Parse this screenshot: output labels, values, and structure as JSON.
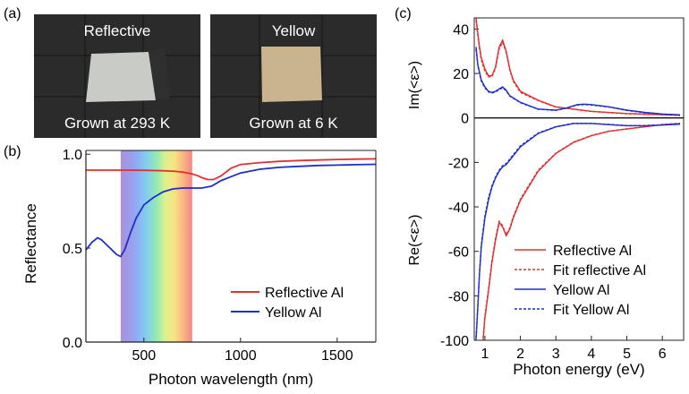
{
  "panels": {
    "a": {
      "label": "(a)",
      "photos": [
        {
          "top_text": "Reflective",
          "bottom_text": "Grown at 293 K",
          "sample_color": "#c9ccc6",
          "background": "#2b2b2b"
        },
        {
          "top_text": "Yellow",
          "bottom_text": "Grown at 6 K",
          "sample_color": "#c9b48f",
          "background": "#2b2b2b"
        }
      ]
    },
    "b": {
      "label": "(b)"
    },
    "c": {
      "label": "(c)"
    }
  },
  "colors": {
    "reflective": "#e03030",
    "yellow": "#1f2fc8",
    "fit_reflective": "#e03030",
    "fit_yellow": "#1f2fc8"
  },
  "chart_data": [
    {
      "id": "b",
      "type": "line",
      "title": "",
      "xlabel": "Photon wavelength (nm)",
      "ylabel": "Reflectance",
      "xlim": [
        200,
        1700
      ],
      "ylim": [
        0,
        1.02
      ],
      "xticks": [
        500,
        1000,
        1500
      ],
      "yticks": [
        0.0,
        0.5,
        1.0
      ],
      "ytick_labels": [
        "0.0",
        "0.5",
        "1.0"
      ],
      "visible_band_nm": [
        380,
        750
      ],
      "legend": "right",
      "series": [
        {
          "name": "Reflective Al",
          "color": "#e03030",
          "x": [
            200,
            300,
            400,
            500,
            600,
            650,
            700,
            750,
            780,
            800,
            830,
            860,
            900,
            950,
            1000,
            1100,
            1200,
            1300,
            1400,
            1500,
            1600,
            1700
          ],
          "y": [
            0.915,
            0.915,
            0.915,
            0.914,
            0.912,
            0.91,
            0.905,
            0.895,
            0.885,
            0.875,
            0.865,
            0.865,
            0.885,
            0.925,
            0.945,
            0.955,
            0.962,
            0.966,
            0.969,
            0.972,
            0.974,
            0.975
          ]
        },
        {
          "name": "Yellow Al",
          "color": "#1f2fc8",
          "x": [
            200,
            230,
            260,
            280,
            300,
            320,
            340,
            360,
            380,
            400,
            430,
            460,
            500,
            550,
            600,
            650,
            700,
            750,
            800,
            850,
            900,
            1000,
            1100,
            1200,
            1300,
            1400,
            1500,
            1600,
            1700
          ],
          "y": [
            0.49,
            0.53,
            0.555,
            0.545,
            0.525,
            0.505,
            0.485,
            0.465,
            0.455,
            0.49,
            0.58,
            0.66,
            0.73,
            0.77,
            0.8,
            0.815,
            0.82,
            0.82,
            0.82,
            0.83,
            0.86,
            0.9,
            0.92,
            0.93,
            0.935,
            0.94,
            0.942,
            0.944,
            0.946
          ]
        }
      ]
    },
    {
      "id": "c",
      "type": "line",
      "title": "",
      "xlabel": "Photon energy (eV)",
      "ylabel_top": "Im(<ε>)",
      "ylabel_bottom": "Re(<ε>)",
      "xlim": [
        0.7,
        6.6
      ],
      "ylim": [
        -100,
        45
      ],
      "xticks": [
        1,
        2,
        3,
        4,
        5,
        6
      ],
      "yticks": [
        -100,
        -80,
        -60,
        -40,
        -20,
        0,
        20,
        40
      ],
      "grid": false,
      "legend": "lower-right",
      "series": [
        {
          "name": "Reflective Al",
          "color": "#e03030",
          "style": "solid",
          "x": [
            0.75,
            0.8,
            0.85,
            0.9,
            1.0,
            1.1,
            1.2,
            1.3,
            1.4,
            1.5,
            1.6,
            1.7,
            1.8,
            2.0,
            2.5,
            3.0,
            3.5,
            4.0,
            5.0,
            6.0,
            6.5
          ],
          "y": [
            45,
            38,
            32,
            27,
            22,
            19,
            19,
            23,
            32,
            35,
            30,
            22,
            17,
            12,
            8,
            5,
            4,
            3,
            2,
            1.5,
            1.2
          ]
        },
        {
          "name": "Reflective Al",
          "color": "#e03030",
          "style": "solid",
          "x": [
            0.95,
            1.0,
            1.1,
            1.2,
            1.3,
            1.4,
            1.5,
            1.6,
            1.7,
            1.8,
            2.0,
            2.5,
            3.0,
            3.5,
            4.0,
            4.5,
            5.0,
            5.5,
            6.0,
            6.5
          ],
          "y": [
            -100,
            -90,
            -78,
            -65,
            -55,
            -47,
            -49,
            -53,
            -50,
            -45,
            -37,
            -24,
            -16,
            -11,
            -8,
            -6,
            -5,
            -4,
            -3,
            -2.5
          ]
        },
        {
          "name": "Fit reflective Al",
          "color": "#e03030",
          "style": "dashed",
          "x": [
            0.75,
            0.8,
            0.85,
            0.9,
            1.0,
            1.1,
            1.2,
            1.3,
            1.4,
            1.5,
            1.6,
            1.7,
            1.8,
            2.0,
            2.5,
            3.0,
            3.5,
            4.0,
            5.0,
            6.0,
            6.5
          ],
          "y": [
            44,
            37,
            31,
            26,
            21,
            18.5,
            18.5,
            22.5,
            31,
            34,
            29.5,
            21.5,
            16.5,
            11.5,
            7.8,
            4.9,
            3.9,
            2.9,
            1.9,
            1.4,
            1.1
          ]
        },
        {
          "name": "Fit reflective Al",
          "color": "#e03030",
          "style": "dashed",
          "x": [
            0.95,
            1.0,
            1.1,
            1.2,
            1.3,
            1.4,
            1.5,
            1.6,
            1.7,
            1.8,
            2.0,
            2.5,
            3.0,
            3.5,
            4.0,
            4.5,
            5.0,
            5.5,
            6.0,
            6.5
          ],
          "y": [
            -99,
            -89,
            -77,
            -64,
            -54,
            -46.5,
            -48.5,
            -52.5,
            -49.5,
            -44.5,
            -36.5,
            -23.5,
            -15.8,
            -10.8,
            -7.9,
            -5.9,
            -4.9,
            -3.9,
            -2.9,
            -2.4
          ]
        },
        {
          "name": "Yellow Al",
          "color": "#1f2fc8",
          "style": "solid",
          "x": [
            0.75,
            0.8,
            0.9,
            1.0,
            1.1,
            1.2,
            1.3,
            1.4,
            1.5,
            1.6,
            1.7,
            2.0,
            2.5,
            3.0,
            3.3,
            3.6,
            3.8,
            4.0,
            4.5,
            5.0,
            5.5,
            6.0,
            6.5
          ],
          "y": [
            32,
            24,
            17,
            14,
            12,
            11.5,
            12,
            13,
            14,
            12.5,
            10,
            7,
            4,
            3.5,
            4.5,
            6,
            6.2,
            6,
            5,
            3.5,
            2.5,
            1.8,
            1.4
          ]
        },
        {
          "name": "Yellow Al",
          "color": "#1f2fc8",
          "style": "solid",
          "x": [
            0.75,
            0.8,
            0.85,
            0.9,
            1.0,
            1.1,
            1.2,
            1.3,
            1.4,
            1.5,
            1.6,
            1.7,
            2.0,
            2.5,
            3.0,
            3.5,
            4.0,
            4.5,
            5.0,
            5.5,
            6.0,
            6.5
          ],
          "y": [
            -100,
            -85,
            -70,
            -58,
            -45,
            -37,
            -31,
            -27,
            -24,
            -22,
            -21,
            -19,
            -13,
            -7,
            -4,
            -2.5,
            -2.5,
            -3,
            -3.5,
            -3.5,
            -3.2,
            -2.8
          ]
        },
        {
          "name": "Fit Yellow Al",
          "color": "#1f2fc8",
          "style": "dashed",
          "x": [
            0.75,
            0.8,
            0.9,
            1.0,
            1.1,
            1.2,
            1.3,
            1.4,
            1.5,
            1.6,
            1.7,
            2.0,
            2.5,
            3.0,
            3.3,
            3.6,
            3.8,
            4.0,
            4.5,
            5.0,
            5.5,
            6.0,
            6.5
          ],
          "y": [
            31,
            23.5,
            16.5,
            13.5,
            11.7,
            11.2,
            11.7,
            12.7,
            13.6,
            12.2,
            9.8,
            6.8,
            3.9,
            3.4,
            4.4,
            5.8,
            6,
            5.8,
            4.9,
            3.4,
            2.4,
            1.7,
            1.3
          ]
        },
        {
          "name": "Fit Yellow Al",
          "color": "#1f2fc8",
          "style": "dashed",
          "x": [
            0.75,
            0.8,
            0.85,
            0.9,
            1.0,
            1.1,
            1.2,
            1.3,
            1.4,
            1.5,
            1.6,
            1.7,
            2.0,
            2.5,
            3.0,
            3.5,
            4.0,
            4.5,
            5.0,
            5.5,
            6.0,
            6.5
          ],
          "y": [
            -99,
            -84,
            -69,
            -57,
            -44,
            -36,
            -30.5,
            -26.5,
            -23.5,
            -21.5,
            -20.5,
            -18.5,
            -12.5,
            -6.8,
            -3.9,
            -2.4,
            -2.4,
            -2.9,
            -3.4,
            -3.4,
            -3.1,
            -2.7
          ]
        }
      ]
    }
  ],
  "legends": {
    "b": [
      {
        "label": "Reflective Al",
        "color": "#e03030",
        "style": "solid"
      },
      {
        "label": "Yellow Al",
        "color": "#1f2fc8",
        "style": "solid"
      }
    ],
    "c": [
      {
        "label": "Reflective Al",
        "color": "#e03030",
        "style": "solid"
      },
      {
        "label": "Fit reflective Al",
        "color": "#e03030",
        "style": "dashed"
      },
      {
        "label": "Yellow Al",
        "color": "#1f2fc8",
        "style": "solid"
      },
      {
        "label": "Fit Yellow Al",
        "color": "#1f2fc8",
        "style": "dashed"
      }
    ]
  }
}
